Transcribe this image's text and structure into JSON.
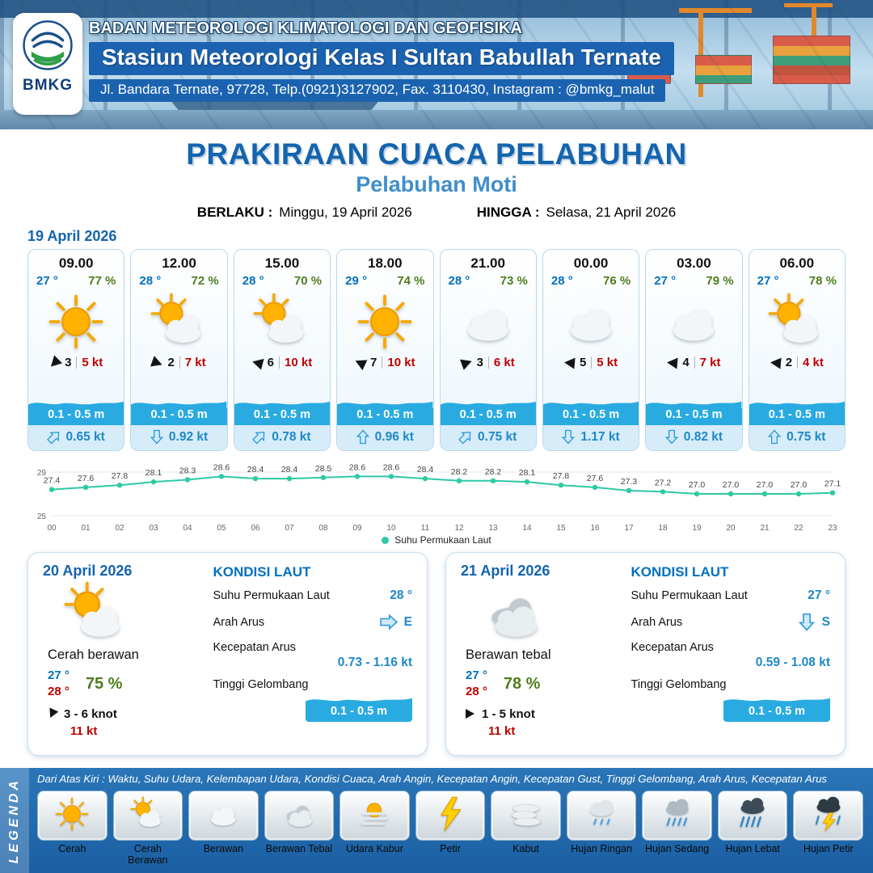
{
  "header": {
    "line1": "BADAN METEOROLOGI KLIMATOLOGI DAN GEOFISIKA",
    "line2": "Stasiun Meteorologi Kelas I Sultan Babullah Ternate",
    "line3": "Jl. Bandara Ternate, 97728, Telp.(0921)3127902, Fax. 3110430, Instagram : @bmkg_malut",
    "logo_text": "BMKG"
  },
  "title": {
    "main": "PRAKIRAAN CUACA PELABUHAN",
    "subtitle": "Pelabuhan Moti",
    "berlaku_label": "BERLAKU :",
    "berlaku_value": "Minggu, 19 April 2026",
    "hingga_label": "HINGGA :",
    "hingga_value": "Selasa, 21 April 2026"
  },
  "forecast_date": "19 April 2026",
  "cards": [
    {
      "time": "09.00",
      "temp": "27 °",
      "rh": "77 %",
      "icon": "sun",
      "wind_dir_deg": 135,
      "wind_speed": "3",
      "wind_gust": "5 kt",
      "wave": "0.1 - 0.5 m",
      "cur_dir_deg": 45,
      "cur_speed": "0.65 kt"
    },
    {
      "time": "12.00",
      "temp": "28 °",
      "rh": "72 %",
      "icon": "sun_cloud",
      "wind_dir_deg": 20,
      "wind_speed": "2",
      "wind_gust": "7 kt",
      "wave": "0.1 - 0.5 m",
      "cur_dir_deg": 180,
      "cur_speed": "0.92 kt"
    },
    {
      "time": "15.00",
      "temp": "28 °",
      "rh": "70 %",
      "icon": "sun_cloud",
      "wind_dir_deg": 195,
      "wind_speed": "6",
      "wind_gust": "10 kt",
      "wave": "0.1 - 0.5 m",
      "cur_dir_deg": 45,
      "cur_speed": "0.78 kt"
    },
    {
      "time": "18.00",
      "temp": "29 °",
      "rh": "74 %",
      "icon": "sun",
      "wind_dir_deg": 205,
      "wind_speed": "7",
      "wind_gust": "10 kt",
      "wave": "0.1 - 0.5 m",
      "cur_dir_deg": 0,
      "cur_speed": "0.96 kt"
    },
    {
      "time": "21.00",
      "temp": "28 °",
      "rh": "73 %",
      "icon": "cloud",
      "wind_dir_deg": 340,
      "wind_speed": "3",
      "wind_gust": "6 kt",
      "wave": "0.1 - 0.5 m",
      "cur_dir_deg": 45,
      "cur_speed": "0.75 kt"
    },
    {
      "time": "00.00",
      "temp": "28 °",
      "rh": "76 %",
      "icon": "cloud",
      "wind_dir_deg": 185,
      "wind_speed": "5",
      "wind_gust": "5 kt",
      "wave": "0.1 - 0.5 m",
      "cur_dir_deg": 180,
      "cur_speed": "1.17 kt"
    },
    {
      "time": "03.00",
      "temp": "27 °",
      "rh": "79 %",
      "icon": "cloud",
      "wind_dir_deg": 185,
      "wind_speed": "4",
      "wind_gust": "7 kt",
      "wave": "0.1 - 0.5 m",
      "cur_dir_deg": 180,
      "cur_speed": "0.82 kt"
    },
    {
      "time": "06.00",
      "temp": "27 °",
      "rh": "78 %",
      "icon": "sun_cloud",
      "wind_dir_deg": 185,
      "wind_speed": "2",
      "wind_gust": "4 kt",
      "wave": "0.1 - 0.5 m",
      "cur_dir_deg": 0,
      "cur_speed": "0.75 kt"
    }
  ],
  "chart_data": {
    "type": "line",
    "series_name": "Suhu Permukaan Laut",
    "x": [
      "00",
      "01",
      "02",
      "03",
      "04",
      "05",
      "06",
      "07",
      "08",
      "09",
      "10",
      "11",
      "12",
      "13",
      "14",
      "15",
      "16",
      "17",
      "18",
      "19",
      "20",
      "21",
      "22",
      "23"
    ],
    "values": [
      27.4,
      27.6,
      27.8,
      28.1,
      28.3,
      28.6,
      28.4,
      28.4,
      28.5,
      28.6,
      28.6,
      28.4,
      28.2,
      28.2,
      28.1,
      27.8,
      27.6,
      27.3,
      27.2,
      27.0,
      27.0,
      27.0,
      27.0,
      27.1
    ],
    "ylim": [
      25,
      29
    ],
    "line_color": "#2ec9a7",
    "grid": "minimal",
    "legend_position": "bottom"
  },
  "daily": [
    {
      "date": "20 April 2026",
      "icon": "sun_cloud",
      "condition": "Cerah berawan",
      "temp_min": "27 °",
      "temp_max": "28 °",
      "rh": "75 %",
      "wind_dir_deg": 115,
      "wind_range": "3 - 6 knot",
      "gust": "11 kt",
      "sea": {
        "heading": "KONDISI LAUT",
        "sst_label": "Suhu Permukaan Laut",
        "sst": "28 °",
        "arah_label": "Arah Arus",
        "arah_deg": 90,
        "arah_text": "E",
        "kec_label": "Kecepatan Arus",
        "kec": "0.73 - 1.16 kt",
        "gel_label": "Tinggi Gelombang",
        "gel": "0.1 - 0.5 m"
      }
    },
    {
      "date": "21 April 2026",
      "icon": "cloud_thick",
      "condition": "Berawan tebal",
      "temp_min": "27 °",
      "temp_max": "28 °",
      "rh": "78 %",
      "wind_dir_deg": 0,
      "wind_range": "1 - 5 knot",
      "gust": "11 kt",
      "sea": {
        "heading": "KONDISI LAUT",
        "sst_label": "Suhu Permukaan Laut",
        "sst": "27 °",
        "arah_label": "Arah Arus",
        "arah_deg": 180,
        "arah_text": "S",
        "kec_label": "Kecepatan Arus",
        "kec": "0.59 - 1.08 kt",
        "gel_label": "Tinggi Gelombang",
        "gel": "0.1 - 0.5 m"
      }
    }
  ],
  "legend": {
    "title": "LEGENDA",
    "note": "Dari Atas Kiri : Waktu, Suhu Udara, Kelembapan Udara, Kondisi Cuaca, Arah Angin, Kecepatan Angin, Kecepatan Gust, Tinggi Gelombang, Arah Arus, Kecepatan Arus",
    "items": [
      {
        "label": "Cerah",
        "icon": "sun"
      },
      {
        "label": "Cerah Berawan",
        "icon": "sun_cloud"
      },
      {
        "label": "Berawan",
        "icon": "cloud"
      },
      {
        "label": "Berawan Tebal",
        "icon": "cloud_thick"
      },
      {
        "label": "Udara Kabur",
        "icon": "haze"
      },
      {
        "label": "Petir",
        "icon": "thunder"
      },
      {
        "label": "Kabut",
        "icon": "fog"
      },
      {
        "label": "Hujan Ringan",
        "icon": "rain_light"
      },
      {
        "label": "Hujan Sedang",
        "icon": "rain_mod"
      },
      {
        "label": "Hujan Lebat",
        "icon": "rain_heavy"
      },
      {
        "label": "Hujan Petir",
        "icon": "rain_thunder"
      }
    ]
  },
  "colors": {
    "header_blue": "#1b63b0",
    "title_blue": "#1464ae",
    "subtitle_blue": "#3f8ecb",
    "temp_blue": "#0070c0",
    "humidity_green": "#4e7d1e",
    "gust_red": "#c00000",
    "wave_blue": "#29abe2",
    "current_blue": "#1e88c7",
    "chart_teal": "#2ec9a7"
  }
}
